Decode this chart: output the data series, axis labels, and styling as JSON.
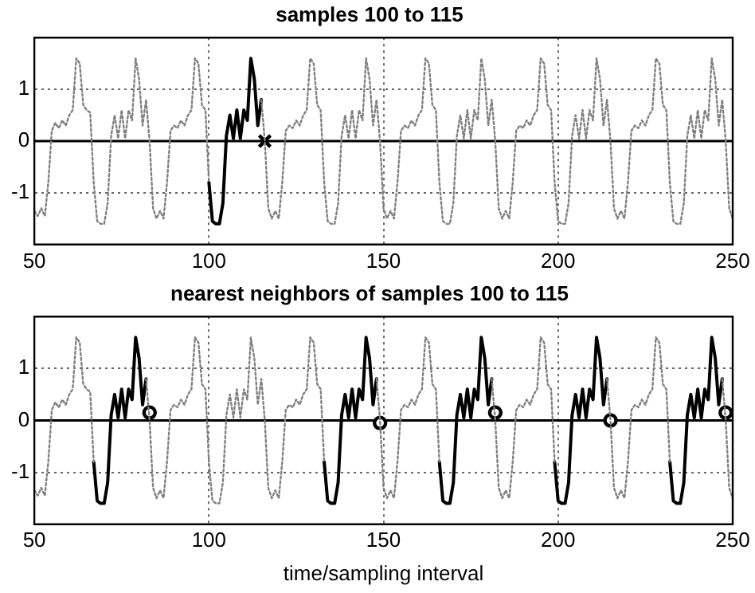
{
  "chart_data": [
    {
      "type": "line",
      "title": "samples 100 to 115",
      "x": [
        50,
        51,
        52,
        53,
        54,
        55,
        56,
        57,
        58,
        59,
        60,
        61,
        62,
        63,
        64,
        65,
        66,
        67,
        68,
        69,
        70,
        71,
        72,
        73,
        74,
        75,
        76,
        77,
        78,
        79,
        80,
        81,
        82,
        83,
        84,
        85,
        86,
        87,
        88,
        89,
        90,
        91,
        92,
        93,
        94,
        95,
        96,
        97,
        98,
        99,
        100,
        101,
        102,
        103,
        104,
        105,
        106,
        107,
        108,
        109,
        110,
        111,
        112,
        113,
        114,
        115,
        116,
        117,
        118,
        119,
        120,
        121,
        122,
        123,
        124,
        125,
        126,
        127,
        128,
        129,
        130,
        131,
        132,
        133,
        134,
        135,
        136,
        137,
        138,
        139,
        140,
        141,
        142,
        143,
        144,
        145,
        146,
        147,
        148,
        149,
        150,
        151,
        152,
        153,
        154,
        155,
        156,
        157,
        158,
        159,
        160,
        161,
        162,
        163,
        164,
        165,
        166,
        167,
        168,
        169,
        170,
        171,
        172,
        173,
        174,
        175,
        176,
        177,
        178,
        179,
        180,
        181,
        182,
        183,
        184,
        185,
        186,
        187,
        188,
        189,
        190,
        191,
        192,
        193,
        194,
        195,
        196,
        197,
        198,
        199,
        200,
        201,
        202,
        203,
        204,
        205,
        206,
        207,
        208,
        209,
        210,
        211,
        212,
        213,
        214,
        215,
        216,
        217,
        218,
        219,
        220,
        221,
        222,
        223,
        224,
        225,
        226,
        227,
        228,
        229,
        230,
        231,
        232,
        233,
        234,
        235,
        236,
        237,
        238,
        239,
        240,
        241,
        242,
        243,
        244,
        245,
        246,
        247,
        248,
        249,
        250
      ],
      "xlim": [
        50,
        250
      ],
      "ylim": [
        -2,
        2
      ],
      "xticks": [
        50,
        100,
        150,
        200,
        250
      ],
      "yticks": [
        -1,
        0,
        1
      ],
      "grid": true,
      "ref_lines": [
        {
          "axis": "y",
          "value": 0,
          "color": "#000000",
          "line_style": "solid"
        }
      ],
      "series": [
        {
          "type": "line",
          "color": "#808080",
          "line_style": "dotted",
          "marker": "none",
          "values": [
            -1.35,
            -1.45,
            -1.3,
            -1.45,
            -0.8,
            0.2,
            0.35,
            0.25,
            0.4,
            0.3,
            0.5,
            0.6,
            1.6,
            1.5,
            0.7,
            0.6,
            0.55,
            -0.8,
            -1.55,
            -1.6,
            -1.6,
            -1.2,
            0.1,
            0.5,
            0.05,
            0.6,
            0.05,
            0.6,
            0.4,
            1.6,
            1.2,
            0.3,
            0.8,
            0.0,
            -1.3,
            -1.5,
            -1.35,
            -1.5,
            -0.8,
            0.2,
            0.3,
            0.25,
            0.4,
            0.3,
            0.5,
            0.6,
            1.6,
            1.5,
            0.7,
            0.6,
            -0.8,
            null,
            null,
            null,
            null,
            null,
            null,
            null,
            null,
            null,
            null,
            null,
            null,
            null,
            null,
            0.8,
            0.0,
            -1.3,
            -1.5,
            -1.35,
            -1.5,
            -0.8,
            0.2,
            0.3,
            0.25,
            0.4,
            0.3,
            0.5,
            0.6,
            1.6,
            1.5,
            0.7,
            0.6,
            -0.8,
            -1.55,
            -1.6,
            -1.6,
            -1.2,
            0.1,
            0.5,
            0.05,
            0.6,
            0.05,
            0.6,
            0.4,
            1.6,
            1.2,
            0.3,
            0.8,
            0.0,
            -1.3,
            -1.5,
            -1.35,
            -1.5,
            -0.8,
            0.2,
            0.3,
            0.25,
            0.4,
            0.3,
            0.5,
            0.6,
            1.6,
            1.5,
            0.7,
            0.6,
            -0.8,
            -1.55,
            -1.6,
            -1.6,
            -1.2,
            0.1,
            0.5,
            0.05,
            0.6,
            0.05,
            0.6,
            0.4,
            1.6,
            1.2,
            0.3,
            0.8,
            0.0,
            -1.3,
            -1.5,
            -1.35,
            -1.5,
            -0.8,
            0.2,
            0.3,
            0.25,
            0.4,
            0.3,
            0.5,
            0.6,
            1.6,
            1.5,
            0.7,
            0.6,
            -0.8,
            -1.55,
            -1.6,
            -1.6,
            -1.2,
            0.1,
            0.5,
            0.05,
            0.6,
            0.05,
            0.6,
            0.4,
            1.6,
            1.2,
            0.3,
            0.8,
            0.0,
            -1.3,
            -1.5,
            -1.35,
            -1.5,
            -0.8,
            0.2,
            0.3,
            0.25,
            0.4,
            0.3,
            0.5,
            0.6,
            1.6,
            1.5,
            0.7,
            0.6,
            -0.8,
            -1.55,
            -1.6,
            -1.6,
            -1.2,
            0.1,
            0.5,
            0.05,
            0.6,
            0.05,
            0.6,
            0.4,
            1.6,
            1.2,
            0.3,
            0.8,
            0.0,
            -1.3,
            -1.5
          ]
        },
        {
          "type": "line",
          "color": "#000000",
          "line_style": "solid",
          "marker": "none",
          "x": [
            100,
            101,
            102,
            103,
            104,
            105,
            106,
            107,
            108,
            109,
            110,
            111,
            112,
            113,
            114,
            115
          ],
          "values": [
            -0.8,
            -1.55,
            -1.6,
            -1.6,
            -1.2,
            0.1,
            0.5,
            0.05,
            0.6,
            0.05,
            0.6,
            0.4,
            1.6,
            1.2,
            0.3,
            0.8
          ]
        },
        {
          "type": "scatter",
          "color": "#000000",
          "marker": "cross",
          "x": [
            116
          ],
          "values": [
            0.0
          ]
        }
      ]
    },
    {
      "type": "line",
      "title": "nearest neighbors of samples 100 to 115",
      "xlabel": "time/sampling interval",
      "x": [
        50,
        51,
        52,
        53,
        54,
        55,
        56,
        57,
        58,
        59,
        60,
        61,
        62,
        63,
        64,
        65,
        66,
        67,
        68,
        69,
        70,
        71,
        72,
        73,
        74,
        75,
        76,
        77,
        78,
        79,
        80,
        81,
        82,
        83,
        84,
        85,
        86,
        87,
        88,
        89,
        90,
        91,
        92,
        93,
        94,
        95,
        96,
        97,
        98,
        99,
        100,
        101,
        102,
        103,
        104,
        105,
        106,
        107,
        108,
        109,
        110,
        111,
        112,
        113,
        114,
        115,
        116,
        117,
        118,
        119,
        120,
        121,
        122,
        123,
        124,
        125,
        126,
        127,
        128,
        129,
        130,
        131,
        132,
        133,
        134,
        135,
        136,
        137,
        138,
        139,
        140,
        141,
        142,
        143,
        144,
        145,
        146,
        147,
        148,
        149,
        150,
        151,
        152,
        153,
        154,
        155,
        156,
        157,
        158,
        159,
        160,
        161,
        162,
        163,
        164,
        165,
        166,
        167,
        168,
        169,
        170,
        171,
        172,
        173,
        174,
        175,
        176,
        177,
        178,
        179,
        180,
        181,
        182,
        183,
        184,
        185,
        186,
        187,
        188,
        189,
        190,
        191,
        192,
        193,
        194,
        195,
        196,
        197,
        198,
        199,
        200,
        201,
        202,
        203,
        204,
        205,
        206,
        207,
        208,
        209,
        210,
        211,
        212,
        213,
        214,
        215,
        216,
        217,
        218,
        219,
        220,
        221,
        222,
        223,
        224,
        225,
        226,
        227,
        228,
        229,
        230,
        231,
        232,
        233,
        234,
        235,
        236,
        237,
        238,
        239,
        240,
        241,
        242,
        243,
        244,
        245,
        246,
        247,
        248,
        249,
        250
      ],
      "xlim": [
        50,
        250
      ],
      "ylim": [
        -2,
        2
      ],
      "xticks": [
        50,
        100,
        150,
        200,
        250
      ],
      "yticks": [
        -1,
        0,
        1
      ],
      "grid": true,
      "ref_lines": [
        {
          "axis": "y",
          "value": 0,
          "color": "#000000",
          "line_style": "solid"
        }
      ],
      "series": [
        {
          "type": "line",
          "color": "#808080",
          "line_style": "dotted",
          "marker": "none",
          "values": [
            -1.35,
            -1.45,
            -1.3,
            -1.45,
            -0.8,
            0.2,
            0.35,
            0.25,
            0.4,
            0.3,
            0.5,
            0.6,
            1.6,
            1.5,
            0.7,
            0.6,
            0.55,
            -0.8,
            null,
            null,
            null,
            null,
            null,
            null,
            null,
            null,
            null,
            null,
            null,
            null,
            null,
            null,
            0.8,
            0.0,
            -1.3,
            -1.5,
            -1.35,
            -1.5,
            -0.8,
            0.2,
            0.3,
            0.25,
            0.4,
            0.3,
            0.5,
            0.6,
            1.6,
            1.5,
            0.7,
            0.6,
            -0.8,
            -1.55,
            -1.6,
            -1.6,
            -1.2,
            0.1,
            0.5,
            0.05,
            0.6,
            0.05,
            0.6,
            0.4,
            1.6,
            1.2,
            0.3,
            0.8,
            0.0,
            -1.3,
            -1.5,
            -1.35,
            -1.5,
            -0.8,
            0.2,
            0.3,
            0.25,
            0.4,
            0.3,
            0.5,
            0.6,
            1.6,
            1.5,
            0.7,
            0.6,
            -0.8,
            null,
            null,
            null,
            null,
            null,
            null,
            null,
            null,
            null,
            null,
            null,
            null,
            null,
            null,
            0.8,
            0.0,
            -1.3,
            -1.5,
            -1.35,
            -1.5,
            -0.8,
            0.2,
            0.3,
            0.25,
            0.4,
            0.3,
            0.5,
            0.6,
            1.6,
            1.5,
            0.7,
            0.6,
            -0.8,
            null,
            null,
            null,
            null,
            null,
            null,
            null,
            null,
            null,
            null,
            null,
            null,
            null,
            null,
            0.8,
            0.0,
            -1.3,
            -1.5,
            -1.35,
            -1.5,
            -0.8,
            0.2,
            0.3,
            0.25,
            0.4,
            0.3,
            0.5,
            0.6,
            1.6,
            1.5,
            0.7,
            0.6,
            -0.8,
            null,
            null,
            null,
            null,
            null,
            null,
            null,
            null,
            null,
            null,
            null,
            null,
            null,
            null,
            0.8,
            0.0,
            -1.3,
            -1.5,
            -1.35,
            -1.5,
            -0.8,
            0.2,
            0.3,
            0.25,
            0.4,
            0.3,
            0.5,
            0.6,
            1.6,
            1.5,
            0.7,
            0.6,
            -0.8,
            null,
            null,
            null,
            null,
            null,
            null,
            null,
            null,
            null,
            null,
            null,
            null,
            null,
            null,
            0.8,
            0.0,
            -1.3,
            -1.5
          ]
        },
        {
          "type": "line",
          "color": "#000000",
          "line_style": "solid",
          "marker": "none",
          "values": [
            null,
            null,
            null,
            null,
            null,
            null,
            null,
            null,
            null,
            null,
            null,
            null,
            null,
            null,
            null,
            null,
            null,
            -0.8,
            -1.55,
            -1.6,
            -1.6,
            -1.2,
            0.1,
            0.5,
            0.05,
            0.6,
            0.05,
            0.6,
            0.4,
            1.6,
            1.2,
            0.3,
            0.8,
            null,
            null,
            null,
            null,
            null,
            null,
            null,
            null,
            null,
            null,
            null,
            null,
            null,
            null,
            null,
            null,
            null,
            null,
            null,
            null,
            null,
            null,
            null,
            null,
            null,
            null,
            null,
            null,
            null,
            null,
            null,
            null,
            null,
            null,
            null,
            null,
            null,
            null,
            null,
            null,
            null,
            null,
            null,
            null,
            null,
            null,
            null,
            null,
            null,
            null,
            -0.8,
            -1.55,
            -1.6,
            -1.6,
            -1.2,
            0.1,
            0.5,
            0.05,
            0.6,
            0.05,
            0.6,
            0.4,
            1.6,
            1.2,
            0.3,
            0.8,
            null,
            null,
            null,
            null,
            null,
            null,
            null,
            null,
            null,
            null,
            null,
            null,
            null,
            null,
            null,
            null,
            null,
            -0.8,
            -1.55,
            -1.6,
            -1.6,
            -1.2,
            0.1,
            0.5,
            0.05,
            0.6,
            0.05,
            0.6,
            0.4,
            1.6,
            1.2,
            0.3,
            0.8,
            null,
            null,
            null,
            null,
            null,
            null,
            null,
            null,
            null,
            null,
            null,
            null,
            null,
            null,
            null,
            null,
            null,
            -0.8,
            -1.55,
            -1.6,
            -1.6,
            -1.2,
            0.1,
            0.5,
            0.05,
            0.6,
            0.05,
            0.6,
            0.4,
            1.6,
            1.2,
            0.3,
            0.8,
            null,
            null,
            null,
            null,
            null,
            null,
            null,
            null,
            null,
            null,
            null,
            null,
            null,
            null,
            null,
            null,
            null,
            -0.8,
            -1.55,
            -1.6,
            -1.6,
            -1.2,
            0.1,
            0.5,
            0.05,
            0.6,
            0.05,
            0.6,
            0.4,
            1.6,
            1.2,
            0.3,
            0.8,
            null,
            null,
            null
          ]
        },
        {
          "type": "scatter",
          "color": "#000000",
          "marker": "circle",
          "x": [
            83,
            149,
            182,
            215,
            248
          ],
          "values": [
            0.15,
            -0.05,
            0.15,
            0.0,
            0.15
          ]
        }
      ]
    }
  ]
}
